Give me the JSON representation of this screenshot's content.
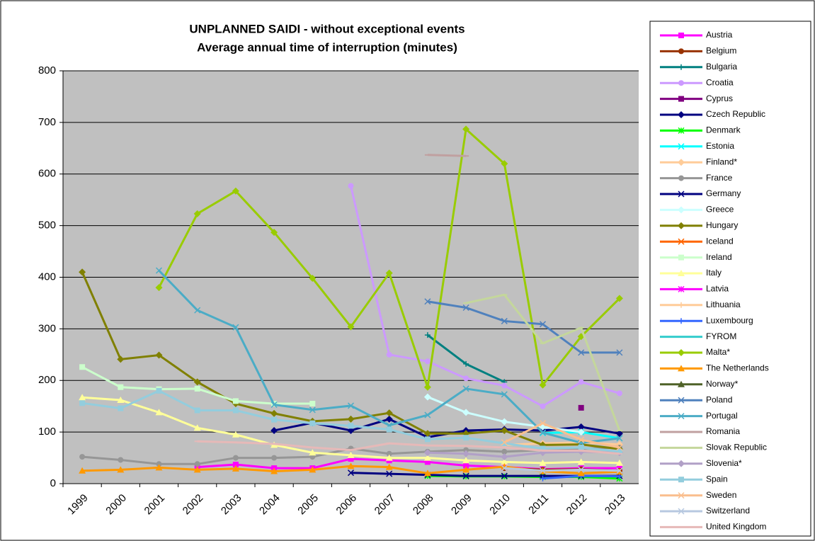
{
  "chart_data": {
    "type": "line",
    "title": "UNPLANNED SAIDI - without exceptional events",
    "subtitle": "Average annual time of interruption (minutes)",
    "categories": [
      "1999",
      "2000",
      "2001",
      "2002",
      "2003",
      "2004",
      "2005",
      "2006",
      "2007",
      "2008",
      "2009",
      "2010",
      "2011",
      "2012",
      "2013"
    ],
    "ylim": [
      0,
      800
    ],
    "yticks": [
      0,
      100,
      200,
      300,
      400,
      500,
      600,
      700,
      800
    ],
    "grid": true,
    "legend": "right",
    "series": [
      {
        "name": "Austria",
        "color": "#ff00ff",
        "marker": "square",
        "values": [
          null,
          null,
          null,
          32,
          37,
          30,
          30,
          48,
          45,
          42,
          35,
          32,
          28,
          30,
          30
        ]
      },
      {
        "name": "Belgium",
        "color": "#993300",
        "marker": "circle",
        "values": [
          null,
          null,
          null,
          null,
          null,
          null,
          null,
          null,
          null,
          null,
          null,
          30,
          27,
          28,
          25
        ]
      },
      {
        "name": "Bulgaria",
        "color": "#008080",
        "marker": "plus",
        "values": [
          null,
          null,
          null,
          null,
          null,
          null,
          null,
          null,
          null,
          288,
          232,
          197,
          null,
          null,
          null
        ]
      },
      {
        "name": "Croatia",
        "color": "#cc99ff",
        "marker": "circle",
        "values": [
          null,
          null,
          null,
          null,
          null,
          null,
          null,
          577,
          250,
          237,
          204,
          190,
          150,
          197,
          175
        ]
      },
      {
        "name": "Cyprus",
        "color": "#800080",
        "marker": "square",
        "values": [
          null,
          null,
          null,
          null,
          null,
          null,
          null,
          null,
          null,
          null,
          null,
          null,
          null,
          147,
          null
        ]
      },
      {
        "name": "Czech Republic",
        "color": "#000080",
        "marker": "diamond",
        "values": [
          null,
          null,
          null,
          null,
          null,
          103,
          118,
          103,
          125,
          90,
          103,
          105,
          103,
          110,
          97
        ]
      },
      {
        "name": "Denmark",
        "color": "#00ff00",
        "marker": "star",
        "values": [
          null,
          null,
          null,
          null,
          null,
          null,
          null,
          null,
          null,
          15,
          14,
          14,
          13,
          13,
          10
        ]
      },
      {
        "name": "Estonia",
        "color": "#00ffff",
        "marker": "x",
        "values": [
          null,
          null,
          null,
          null,
          null,
          null,
          null,
          null,
          null,
          null,
          null,
          null,
          98,
          100,
          88
        ]
      },
      {
        "name": "Finland*",
        "color": "#ffcc99",
        "marker": "diamond",
        "values": [
          null,
          null,
          null,
          null,
          null,
          null,
          null,
          null,
          null,
          null,
          null,
          75,
          78,
          80,
          76
        ]
      },
      {
        "name": "France",
        "color": "#969696",
        "marker": "circle",
        "values": [
          52,
          46,
          38,
          38,
          50,
          50,
          52,
          68,
          58,
          62,
          65,
          62,
          65,
          68,
          70
        ]
      },
      {
        "name": "Germany",
        "color": "#000080",
        "marker": "x",
        "values": [
          null,
          null,
          null,
          null,
          null,
          null,
          null,
          21,
          19,
          17,
          15,
          15,
          15,
          15,
          15
        ]
      },
      {
        "name": "Greece",
        "color": "#ccffff",
        "marker": "diamond",
        "values": [
          null,
          null,
          null,
          null,
          null,
          null,
          null,
          null,
          null,
          168,
          138,
          120,
          110,
          100,
          null
        ]
      },
      {
        "name": "Hungary",
        "color": "#808000",
        "marker": "diamond",
        "values": [
          410,
          241,
          249,
          197,
          155,
          136,
          121,
          125,
          137,
          97,
          97,
          103,
          75,
          76,
          67
        ]
      },
      {
        "name": "Iceland",
        "color": "#ff6600",
        "marker": "x",
        "values": [
          null,
          null,
          null,
          null,
          null,
          null,
          null,
          null,
          null,
          null,
          null,
          30,
          null,
          null,
          null
        ]
      },
      {
        "name": "Ireland",
        "color": "#ccffcc",
        "marker": "square",
        "values": [
          226,
          187,
          183,
          184,
          160,
          155,
          155,
          null,
          null,
          null,
          null,
          null,
          null,
          null,
          null
        ]
      },
      {
        "name": "Italy",
        "color": "#ffff99",
        "marker": "triangle",
        "values": [
          167,
          162,
          138,
          108,
          95,
          75,
          60,
          55,
          50,
          50,
          45,
          42,
          40,
          42,
          40
        ]
      },
      {
        "name": "Latvia",
        "color": "#ff00ff",
        "marker": "star",
        "values": [
          null,
          null,
          null,
          null,
          null,
          null,
          null,
          null,
          null,
          null,
          null,
          null,
          null,
          null,
          null
        ]
      },
      {
        "name": "Lithuania",
        "color": "#ffcc99",
        "marker": "plus",
        "values": [
          null,
          null,
          null,
          null,
          null,
          null,
          null,
          null,
          null,
          null,
          null,
          null,
          null,
          null,
          null
        ]
      },
      {
        "name": "Luxembourg",
        "color": "#3366ff",
        "marker": "plus",
        "values": [
          null,
          null,
          null,
          null,
          null,
          null,
          null,
          null,
          null,
          null,
          null,
          null,
          10,
          15,
          14
        ]
      },
      {
        "name": "FYROM",
        "color": "#33cccc",
        "marker": "dash",
        "values": [
          null,
          null,
          null,
          null,
          null,
          null,
          null,
          null,
          null,
          null,
          null,
          null,
          null,
          null,
          null
        ]
      },
      {
        "name": "Malta*",
        "color": "#99cc00",
        "marker": "diamond",
        "values": [
          null,
          null,
          380,
          523,
          567,
          487,
          398,
          304,
          408,
          187,
          687,
          620,
          191,
          285,
          359
        ]
      },
      {
        "name": "The Netherlands",
        "color": "#ff9900",
        "marker": "triangle",
        "values": [
          25,
          27,
          31,
          27,
          29,
          24,
          27,
          34,
          32,
          20,
          27,
          33,
          24,
          20,
          23
        ]
      },
      {
        "name": "Norway*",
        "color": "#4f6228",
        "marker": "triangle",
        "values": [
          null,
          null,
          null,
          null,
          null,
          null,
          null,
          null,
          null,
          null,
          null,
          null,
          null,
          null,
          null
        ]
      },
      {
        "name": "Poland",
        "color": "#4f81bd",
        "marker": "x",
        "values": [
          null,
          null,
          null,
          null,
          null,
          null,
          null,
          null,
          null,
          353,
          341,
          315,
          309,
          254,
          254
        ]
      },
      {
        "name": "Portugal",
        "color": "#4bacc6",
        "marker": "x",
        "values": [
          null,
          null,
          413,
          336,
          303,
          153,
          143,
          151,
          113,
          133,
          184,
          173,
          99,
          79,
          88
        ]
      },
      {
        "name": "Romania",
        "color": "#c0a0a0",
        "marker": "dash",
        "values": [
          null,
          null,
          null,
          null,
          null,
          null,
          null,
          null,
          null,
          637,
          635,
          null,
          null,
          null,
          null
        ]
      },
      {
        "name": "Slovak Republic",
        "color": "#c4d79b",
        "marker": "dash",
        "values": [
          null,
          null,
          null,
          null,
          null,
          null,
          null,
          null,
          null,
          null,
          350,
          366,
          272,
          302,
          103
        ]
      },
      {
        "name": "Slovenia*",
        "color": "#b1a0c7",
        "marker": "diamond",
        "values": [
          null,
          null,
          null,
          null,
          null,
          null,
          null,
          null,
          null,
          60,
          58,
          52,
          60,
          62,
          60
        ]
      },
      {
        "name": "Spain",
        "color": "#93cddd",
        "marker": "square",
        "values": [
          156,
          146,
          180,
          142,
          142,
          124,
          117,
          112,
          105,
          86,
          89,
          78,
          68,
          70,
          62
        ]
      },
      {
        "name": "Sweden",
        "color": "#fabf8f",
        "marker": "x",
        "values": [
          null,
          null,
          null,
          null,
          null,
          null,
          null,
          null,
          null,
          null,
          null,
          80,
          117,
          85,
          70
        ]
      },
      {
        "name": "Switzerland",
        "color": "#b7c8e0",
        "marker": "x",
        "values": [
          null,
          null,
          null,
          null,
          null,
          null,
          null,
          null,
          null,
          null,
          null,
          30,
          25,
          27,
          25
        ]
      },
      {
        "name": "United Kingdom",
        "color": "#e6b9b8",
        "marker": "dash",
        "values": [
          null,
          null,
          null,
          82,
          80,
          77,
          70,
          65,
          78,
          74,
          73,
          70,
          64,
          64,
          58
        ]
      }
    ]
  }
}
